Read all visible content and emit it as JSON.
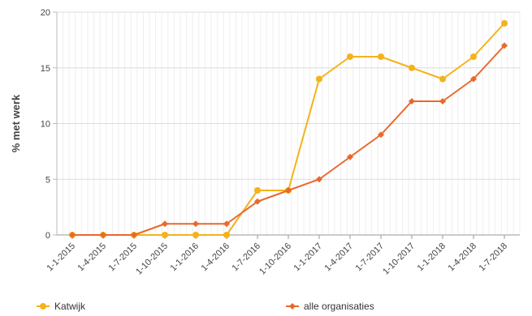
{
  "chart_data": {
    "type": "line",
    "title": "",
    "xlabel": "",
    "ylabel": "% met werk",
    "ylim": [
      0,
      20
    ],
    "yticks": [
      0,
      5,
      10,
      15,
      20
    ],
    "grid": true,
    "legend_position": "bottom",
    "categories": [
      "1-1-2015",
      "1-4-2015",
      "1-7-2015",
      "1-10-2015",
      "1-1-2016",
      "1-4-2016",
      "1-7-2016",
      "1-10-2016",
      "1-1-2017",
      "1-4-2017",
      "1-7-2017",
      "1-10-2017",
      "1-1-2018",
      "1-4-2018",
      "1-7-2018"
    ],
    "series": [
      {
        "name": "Katwijk",
        "color": "#f5b21a",
        "marker": "circle",
        "values": [
          0,
          0,
          0,
          0,
          0,
          0,
          4,
          4,
          14,
          16,
          16,
          15,
          14,
          16,
          19
        ]
      },
      {
        "name": "alle organisaties",
        "color": "#e8692c",
        "marker": "diamond",
        "values": [
          0,
          0,
          0,
          1,
          1,
          1,
          3,
          4,
          5,
          7,
          9,
          12,
          12,
          14,
          17
        ]
      }
    ]
  }
}
